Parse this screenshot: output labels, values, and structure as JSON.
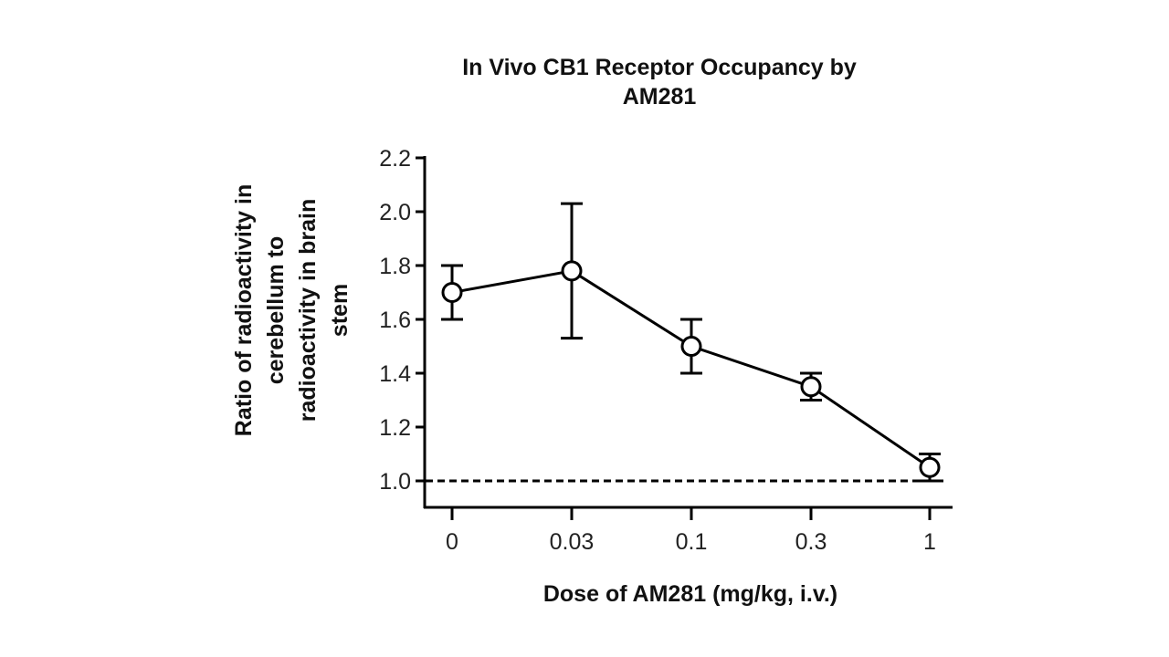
{
  "chart_data": {
    "type": "line",
    "title": [
      "In Vivo CB1 Receptor Occupancy by",
      "AM281"
    ],
    "xlabel": "Dose of AM281 (mg/kg, i.v.)",
    "ylabel": [
      "Ratio of radioactivity in",
      "cerebellum to",
      "radioactivity in brain",
      "stem"
    ],
    "categories": [
      "0",
      "0.03",
      "0.1",
      "0.3",
      "1"
    ],
    "ylim": [
      0.9,
      2.2
    ],
    "yticks": [
      "1.0",
      "1.2",
      "1.4",
      "1.6",
      "1.8",
      "2.0",
      "2.2"
    ],
    "grid": false,
    "series": [
      {
        "values": [
          1.7,
          1.78,
          1.5,
          1.35,
          1.05
        ],
        "error_low": [
          1.6,
          1.53,
          1.4,
          1.3,
          1.0
        ],
        "error_high": [
          1.8,
          2.03,
          1.6,
          1.4,
          1.1
        ],
        "marker": "open-circle",
        "color": "#000000"
      }
    ],
    "reference_line": {
      "y": 1.0,
      "style": "dashed"
    }
  }
}
